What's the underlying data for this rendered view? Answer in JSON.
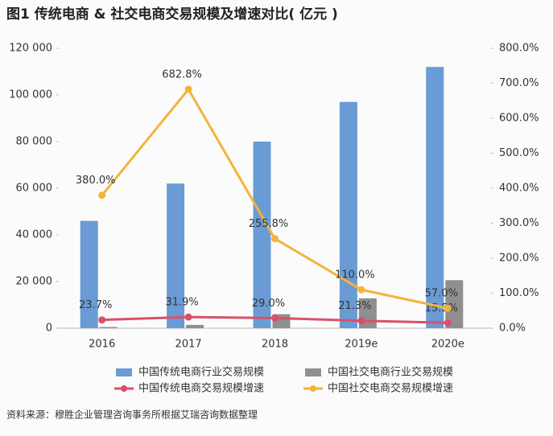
{
  "chart_data": {
    "type": "combo",
    "title": "图1 传统电商 & 社交电商交易规模及增速对比( 亿元 )",
    "source": "资料来源：穆胜企业管理咨询事务所根据艾瑞咨询数据整理",
    "categories": [
      "2016",
      "2017",
      "2018",
      "2019e",
      "2020e"
    ],
    "ylim": [
      0,
      120000
    ],
    "yticks": [
      0,
      {
        "value": 20000,
        "label": "20 000"
      },
      {
        "value": 40000,
        "label": "40 000"
      },
      {
        "value": 60000,
        "label": "60 000"
      },
      {
        "value": 80000,
        "label": "80 000"
      },
      {
        "value": 100000,
        "label": "100 000"
      },
      {
        "value": 120000,
        "label": "120 000"
      }
    ],
    "y2lim": [
      0,
      800
    ],
    "y2ticks": [
      {
        "value": 0,
        "label": "0.0%"
      },
      {
        "value": 100,
        "label": "100.0%"
      },
      {
        "value": 200,
        "label": "200.0%"
      },
      {
        "value": 300,
        "label": "300.0%"
      },
      {
        "value": 400,
        "label": "400.0%"
      },
      {
        "value": 500,
        "label": "500.0%"
      },
      {
        "value": 600,
        "label": "600.0%"
      },
      {
        "value": 700,
        "label": "700.0%"
      },
      {
        "value": 800,
        "label": "800.0%"
      }
    ],
    "series": [
      {
        "name": "中国传统电商行业交易规模",
        "type": "bar",
        "color": "#6a9bd4",
        "values": [
          46000,
          62000,
          80000,
          97000,
          112000
        ]
      },
      {
        "name": "中国社交电商行业交易规模",
        "type": "bar",
        "color": "#8f8f8f",
        "values": [
          500,
          1400,
          6000,
          12800,
          20600
        ]
      },
      {
        "name": "中国传统电商交易规模增速",
        "type": "line",
        "axis": "y2",
        "color": "#d9506a",
        "values": [
          23.7,
          31.9,
          29.0,
          21.3,
          15.5
        ],
        "value_labels": [
          "23.7%",
          "31.9%",
          "29.0%",
          "21.3%",
          "15.5%"
        ]
      },
      {
        "name": "中国社交电商交易规模增速",
        "type": "line",
        "axis": "y2",
        "color": "#f3b43b",
        "values": [
          380.0,
          682.8,
          255.8,
          110.0,
          57.0
        ],
        "value_labels": [
          "380.0%",
          "682.8%",
          "255.8%",
          "110.0%",
          "57.0%"
        ]
      }
    ]
  }
}
